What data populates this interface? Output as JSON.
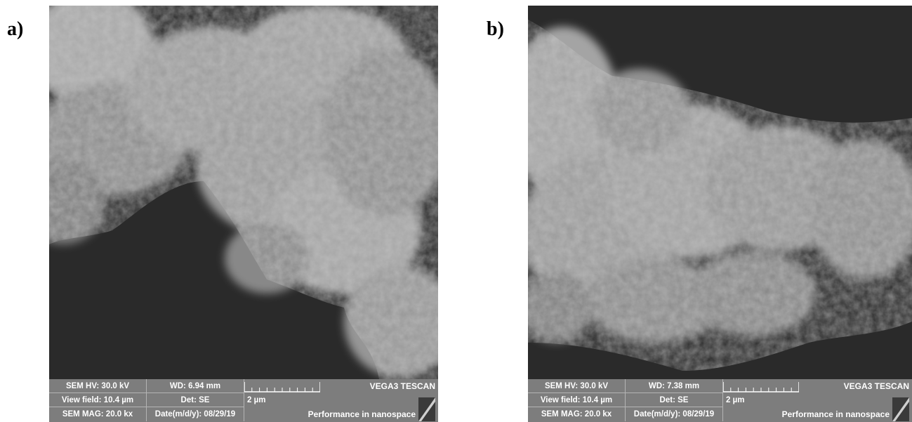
{
  "labels": {
    "a": "a)",
    "b": "b)"
  },
  "panels": {
    "a": {
      "hv": "SEM HV: 30.0 kV",
      "wd": "WD: 6.94 mm",
      "view_field": "View field: 10.4 µm",
      "det": "Det: SE",
      "mag": "SEM MAG: 20.0 kx",
      "date": "Date(m/d/y): 08/29/19",
      "scale": "2 µm",
      "brand": "VEGA3 TESCAN",
      "slogan": "Performance in nanospace"
    },
    "b": {
      "hv": "SEM HV: 30.0 kV",
      "wd": "WD: 7.38 mm",
      "view_field": "View field: 10.4 µm",
      "det": "Det: SE",
      "mag": "SEM MAG: 20.0 kx",
      "date": "Date(m/d/y): 08/29/19",
      "scale": "2 µm",
      "brand": "VEGA3 TESCAN",
      "slogan": "Performance in nanospace"
    }
  },
  "colors": {
    "info_bar": "#7d7d7d",
    "background": "#2a2a2a",
    "particles": "#9a9a9a"
  }
}
